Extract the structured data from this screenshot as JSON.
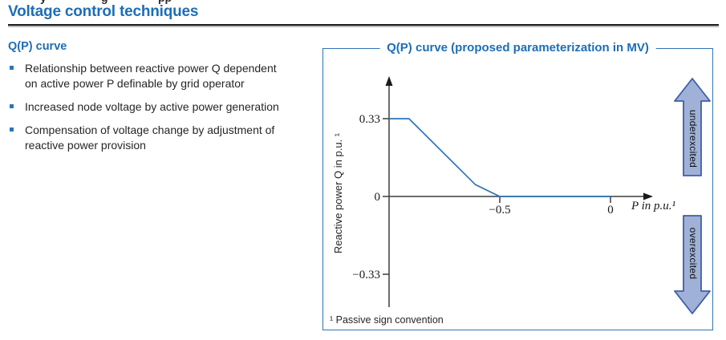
{
  "page": {
    "title": "Voltage control techniques",
    "clipped_fragments": [
      "y",
      "g",
      "pp"
    ]
  },
  "left_panel": {
    "heading": "Q(P) curve",
    "bullets": [
      {
        "lines": [
          "Relationship between reactive power Q dependent",
          "on active power P definable by grid operator"
        ]
      },
      {
        "lines": [
          "Increased node voltage by active power generation"
        ]
      },
      {
        "lines": [
          "Compensation of voltage change by adjustment of",
          "reactive power provision"
        ]
      }
    ]
  },
  "chart_panel": {
    "title": "Q(P) curve (proposed parameterization in MV)",
    "footnote": "¹ Passive sign convention",
    "arrow_up_label": "underexcited",
    "arrow_down_label": "overexcited"
  },
  "chart_data": {
    "type": "line",
    "title": "Q(P) curve (proposed parameterization in MV)",
    "xlabel": "P in p.u.¹",
    "ylabel": "Reactive power Q in p.u. ¹",
    "xlim": [
      -1.0,
      0.2
    ],
    "ylim": [
      -0.47,
      0.47
    ],
    "x_ticks": [
      -0.5,
      0
    ],
    "x_tick_labels": [
      "−0.5",
      "0"
    ],
    "y_ticks": [
      0.33,
      0,
      -0.33
    ],
    "y_tick_labels": [
      "0.33",
      "0",
      "−0.33"
    ],
    "series": [
      {
        "name": "Q(P) curve",
        "points": [
          [
            -1.0,
            0.33
          ],
          [
            -0.91,
            0.33
          ],
          [
            -0.61,
            0.05
          ],
          [
            -0.5,
            0.0
          ],
          [
            0.0,
            0.0
          ]
        ]
      }
    ],
    "annotations": [
      "underexcited (up arrow, positive Q)",
      "overexcited (down arrow, negative Q)"
    ],
    "grid": false,
    "legend": false
  },
  "colors": {
    "accent_blue": "#1d6eb5",
    "curve_blue": "#2e75b6",
    "box_border": "#2e75b6",
    "axis": "#3d3d3d",
    "arrow_fill": "#9fb1d6",
    "arrow_stroke": "#3e5ea9",
    "text_dark": "#262626",
    "title_rule": "#1c1c24"
  }
}
